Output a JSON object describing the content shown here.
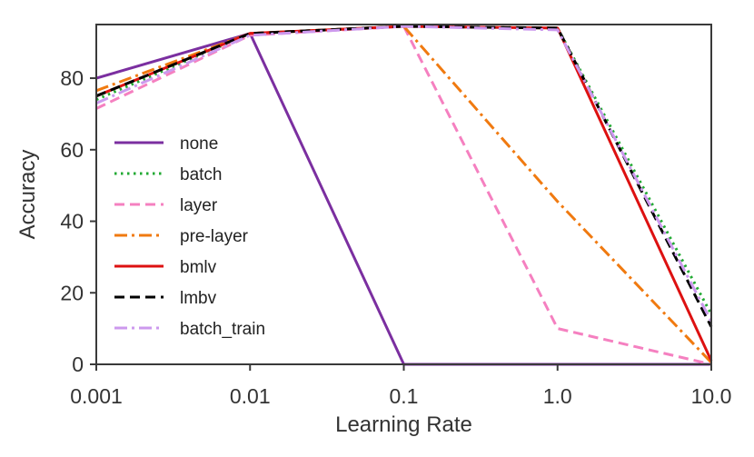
{
  "chart_data": {
    "type": "line",
    "title": "",
    "xlabel": "Learning Rate",
    "ylabel": "Accuracy",
    "x_scale": "log",
    "categories": [
      "0.001",
      "0.01",
      "0.1",
      "1.0",
      "10.0"
    ],
    "x": [
      0.001,
      0.01,
      0.1,
      1.0,
      10.0
    ],
    "ylim": [
      0,
      95
    ],
    "yticks": [
      0,
      20,
      40,
      60,
      80
    ],
    "grid": false,
    "legend_position": "center-left",
    "series": [
      {
        "name": "none",
        "values": [
          80,
          92.5,
          0,
          0,
          0
        ],
        "color": "#7b2fa0",
        "dash": "solid"
      },
      {
        "name": "batch",
        "values": [
          74,
          92.5,
          94.5,
          94,
          14
        ],
        "color": "#22aa33",
        "dash": "dotted"
      },
      {
        "name": "layer",
        "values": [
          71.5,
          92,
          94.5,
          10,
          0
        ],
        "color": "#f580c0",
        "dash": "dashed"
      },
      {
        "name": "pre-layer",
        "values": [
          76.5,
          92.5,
          94.5,
          45.5,
          0.5
        ],
        "color": "#f07a10",
        "dash": "dashdot"
      },
      {
        "name": "bmlv",
        "values": [
          75,
          92.5,
          94.5,
          94,
          1
        ],
        "color": "#dd1111",
        "dash": "solid"
      },
      {
        "name": "lmbv",
        "values": [
          75,
          92.5,
          94.5,
          94,
          10.5
        ],
        "color": "#000000",
        "dash": "dashed"
      },
      {
        "name": "batch_train",
        "values": [
          73,
          92,
          94.5,
          93.5,
          12
        ],
        "color": "#cc99ee",
        "dash": "dashdot"
      }
    ]
  }
}
